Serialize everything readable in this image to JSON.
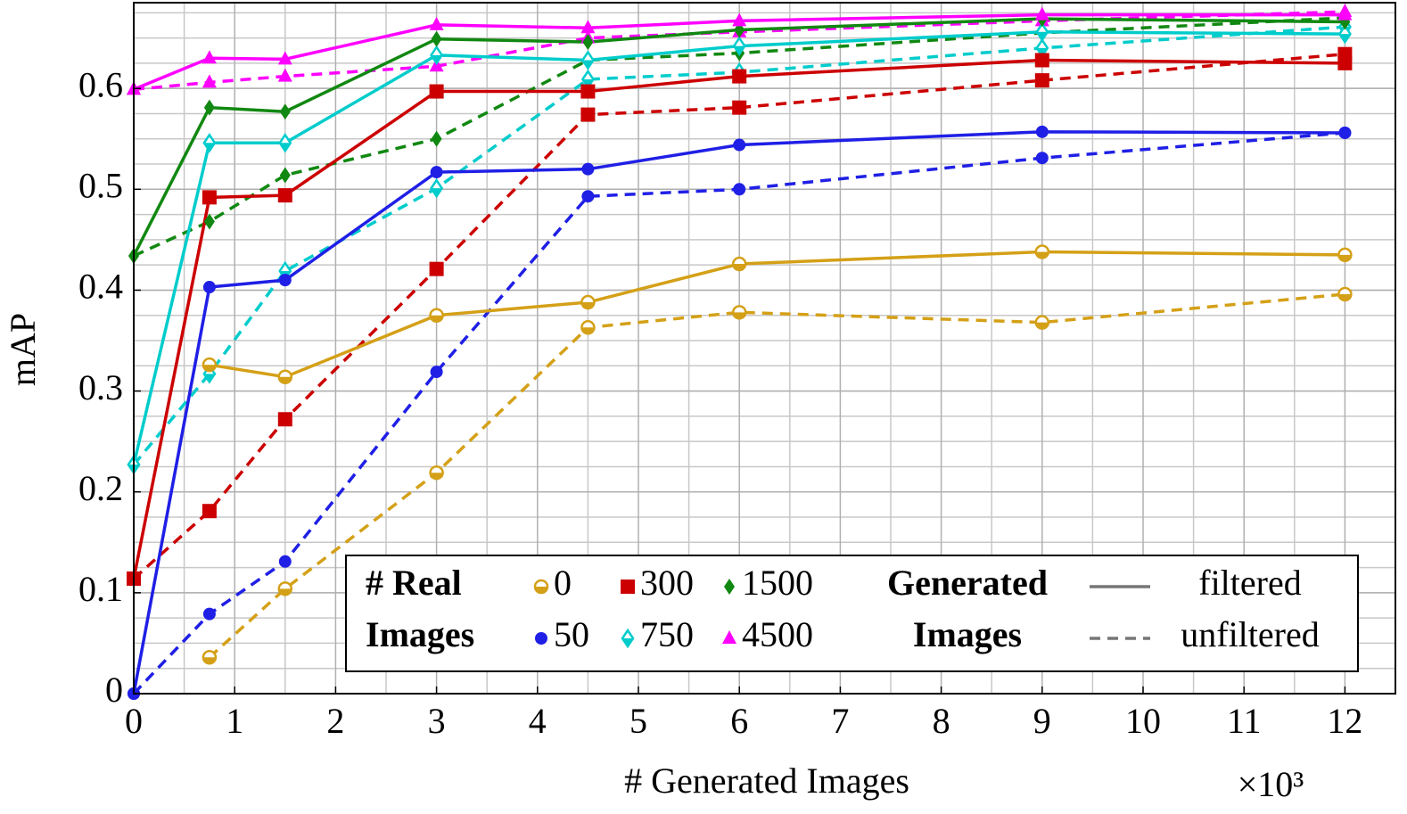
{
  "chart_data": {
    "type": "line",
    "xlabel": "# Generated Images",
    "ylabel": "mAP",
    "x_scale_label": "×10³",
    "x": [
      0,
      0.75,
      1.5,
      3,
      4.5,
      6,
      9,
      12
    ],
    "xlim": [
      0,
      12.5
    ],
    "ylim": [
      0,
      0.685
    ],
    "xticks": [
      0,
      1,
      2,
      3,
      4,
      5,
      6,
      7,
      8,
      9,
      10,
      11,
      12
    ],
    "yticks": [
      0,
      0.1,
      0.2,
      0.3,
      0.4,
      0.5,
      0.6
    ],
    "grid": true,
    "legend": {
      "title_left": [
        "# Real",
        "Images"
      ],
      "title_right": [
        "Generated",
        "Images"
      ],
      "line_styles": [
        {
          "label": "filtered",
          "dashed": false
        },
        {
          "label": "unfiltered",
          "dashed": true
        }
      ]
    },
    "series": [
      {
        "name": "0",
        "color": "#d4a017",
        "marker": "half-circle",
        "filtered": [
          null,
          0.326,
          0.314,
          0.375,
          0.388,
          0.426,
          0.438,
          0.435
        ],
        "unfiltered": [
          null,
          0.036,
          0.104,
          0.219,
          0.363,
          0.378,
          0.368,
          0.396
        ]
      },
      {
        "name": "50",
        "color": "#1f1fe6",
        "marker": "circle",
        "filtered": [
          0,
          0.403,
          0.41,
          0.517,
          0.52,
          0.544,
          0.557,
          0.556
        ],
        "unfiltered": [
          0,
          0.079,
          0.131,
          0.319,
          0.493,
          0.5,
          0.531,
          0.556
        ]
      },
      {
        "name": "300",
        "color": "#cc0000",
        "marker": "square",
        "filtered": [
          0.114,
          0.492,
          0.494,
          0.597,
          0.597,
          0.612,
          0.628,
          0.625
        ],
        "unfiltered": [
          0.114,
          0.181,
          0.272,
          0.421,
          0.574,
          0.581,
          0.608,
          0.634
        ]
      },
      {
        "name": "750",
        "color": "#00cccc",
        "marker": "half-diamond",
        "filtered": [
          0.227,
          0.546,
          0.546,
          0.633,
          0.628,
          0.642,
          0.656,
          0.654
        ],
        "unfiltered": [
          0.227,
          0.317,
          0.419,
          0.501,
          0.609,
          0.616,
          0.64,
          0.661
        ]
      },
      {
        "name": "1500",
        "color": "#118811",
        "marker": "diamond",
        "filtered": [
          0.434,
          0.581,
          0.577,
          0.649,
          0.646,
          0.658,
          0.669,
          0.666
        ],
        "unfiltered": [
          0.434,
          0.468,
          0.514,
          0.55,
          0.628,
          0.635,
          0.655,
          0.67
        ]
      },
      {
        "name": "4500",
        "color": "#ff00ff",
        "marker": "triangle",
        "filtered": [
          0.599,
          0.63,
          0.629,
          0.663,
          0.66,
          0.667,
          0.673,
          0.673
        ],
        "unfiltered": [
          0.599,
          0.606,
          0.612,
          0.622,
          0.65,
          0.656,
          0.667,
          0.676
        ]
      }
    ]
  }
}
